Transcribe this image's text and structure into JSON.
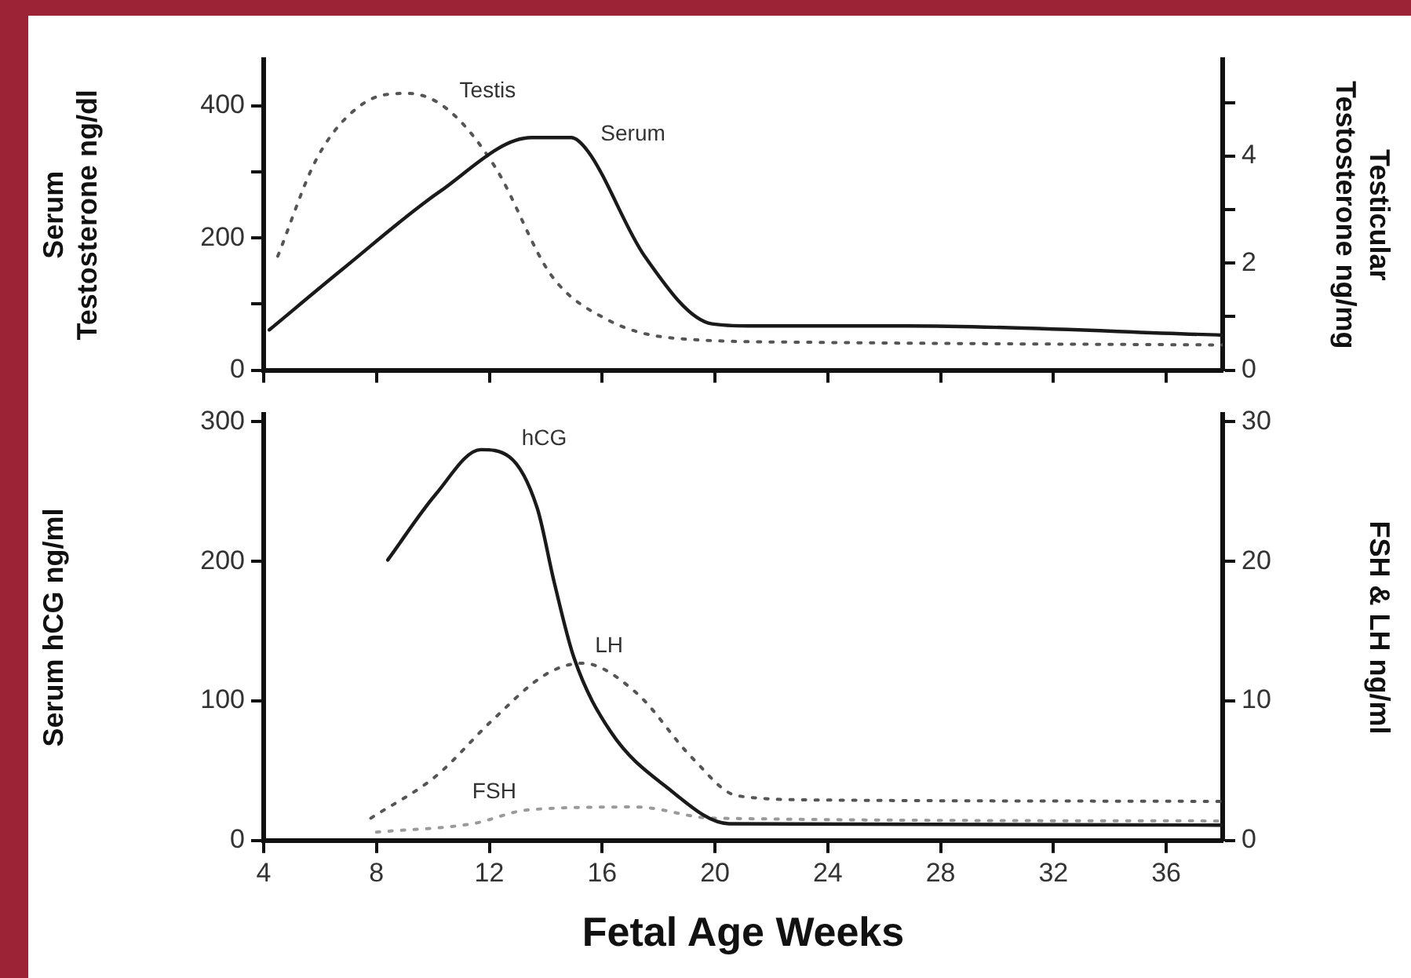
{
  "chart_data": [
    {
      "type": "line",
      "ylabel": "Serum\nTestosterone ng/dl",
      "y2label": "Testicular\nTestosterone ng/mg",
      "xlim": [
        4,
        38
      ],
      "xticks": [
        4,
        8,
        12,
        16,
        20,
        24,
        28,
        32,
        36
      ],
      "ylim": [
        0,
        470
      ],
      "yticks": [
        0,
        {
          "value": 100,
          "label": null
        },
        200,
        {
          "value": 300,
          "label": null
        },
        400
      ],
      "y2lim": [
        0,
        5.8
      ],
      "y2ticks": [
        0,
        {
          "value": 1,
          "label": null
        },
        2,
        {
          "value": 3,
          "label": null
        },
        4,
        {
          "value": 5,
          "label": null
        }
      ],
      "tick_labels": "y",
      "grid": false,
      "legend": false,
      "marker": "none",
      "series": [
        {
          "name": "Serum",
          "color": "#1a1a1a",
          "line_style": "solid",
          "x": [
            4.2,
            6.8,
            10.2,
            13.5,
            14.9,
            15.5,
            17.5,
            19.9,
            21.2,
            26.8,
            38
          ],
          "values": [
            61,
            153,
            269,
            352,
            352,
            331,
            173,
            70,
            67,
            67,
            53
          ]
        },
        {
          "name": "Testis",
          "color": "#555555",
          "line_style": "dotted",
          "axis": "y2",
          "x": [
            4.5,
            5.9,
            7.5,
            9.1,
            10.5,
            12.2,
            14.2,
            16.2,
            18.5,
            23.5,
            38
          ],
          "values": [
            2.13,
            3.97,
            4.97,
            5.17,
            4.88,
            3.8,
            1.77,
            0.94,
            0.6,
            0.52,
            0.47
          ]
        }
      ]
    },
    {
      "type": "line",
      "xlabel": "Fetal Age Weeks",
      "ylabel": "Serum hCG ng/ml",
      "y2label": "FSH & LH ng/ml",
      "xlim": [
        4,
        38
      ],
      "xticks": [
        4,
        8,
        12,
        16,
        20,
        24,
        28,
        32,
        36
      ],
      "ylim": [
        0,
        305
      ],
      "yticks": [
        0,
        100,
        200,
        300
      ],
      "y2lim": [
        0,
        30.5
      ],
      "y2ticks": [
        0,
        10,
        20,
        30
      ],
      "grid": false,
      "legend": false,
      "marker": "none",
      "series": [
        {
          "name": "hCG",
          "color": "#1a1a1a",
          "line_style": "solid",
          "x": [
            8.4,
            10.1,
            11.7,
            12.7,
            13.7,
            14.3,
            15,
            16.3,
            18.3,
            20.5,
            38
          ],
          "values": [
            201,
            248,
            280,
            275,
            238,
            185,
            131,
            78,
            38,
            12,
            11
          ]
        },
        {
          "name": "LH",
          "color": "#555555",
          "line_style": "dotted",
          "axis": "y2",
          "x": [
            7.8,
            10.1,
            12.1,
            14,
            15.3,
            17.2,
            19.2,
            20.8,
            23.8,
            38
          ],
          "values": [
            1.6,
            4.6,
            8.6,
            11.9,
            12.7,
            10.6,
            5.9,
            3.2,
            2.9,
            2.8
          ]
        },
        {
          "name": "FSH",
          "color": "#9a9a9a",
          "line_style": "dotted",
          "axis": "y2",
          "x": [
            8,
            11.4,
            13.4,
            17.2,
            19.9,
            38
          ],
          "values": [
            0.6,
            1.2,
            2.2,
            2.4,
            1.6,
            1.4
          ]
        }
      ]
    }
  ]
}
